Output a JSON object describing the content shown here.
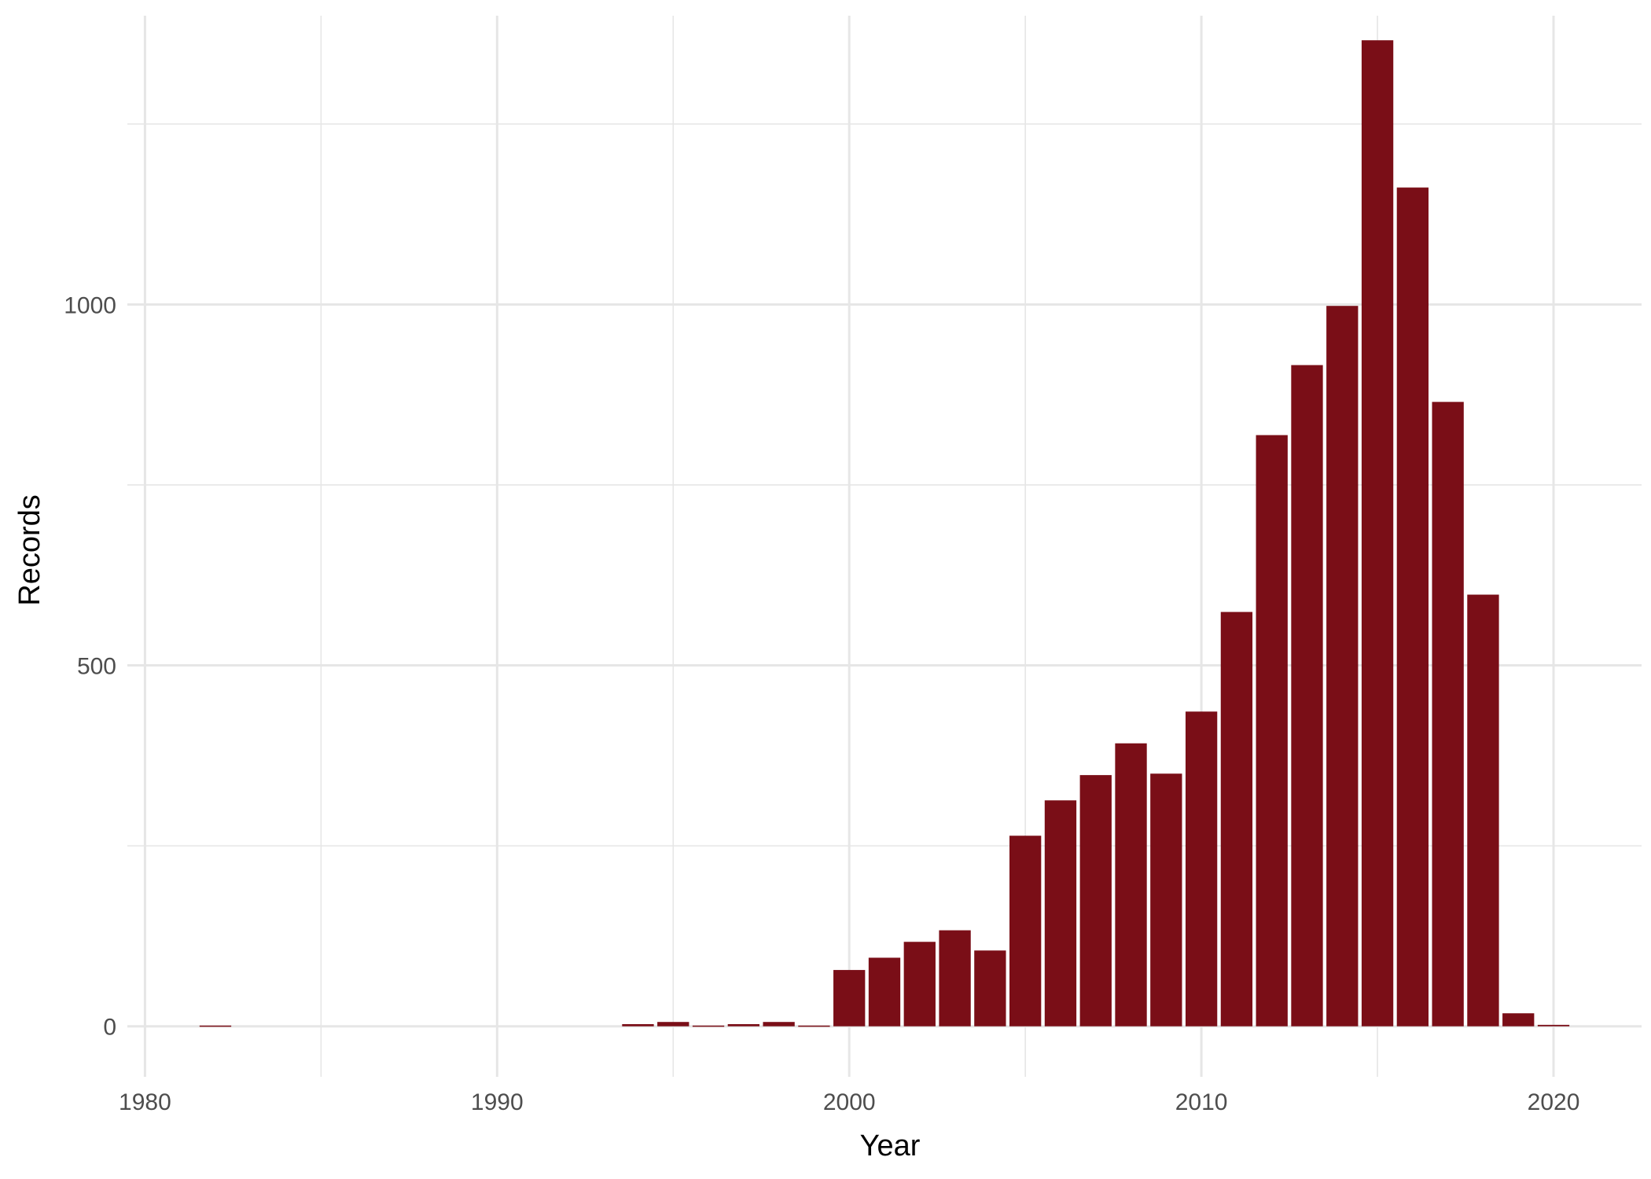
{
  "chart_data": {
    "type": "bar",
    "title": "",
    "xlabel": "Year",
    "ylabel": "Records",
    "x": [
      1982,
      1994,
      1995,
      1996,
      1997,
      1998,
      1999,
      2000,
      2001,
      2002,
      2003,
      2004,
      2005,
      2006,
      2007,
      2008,
      2009,
      2010,
      2011,
      2012,
      2013,
      2014,
      2015,
      2016,
      2017,
      2018,
      2019,
      2020
    ],
    "values": [
      1,
      3,
      6,
      1,
      3,
      6,
      1,
      78,
      95,
      117,
      133,
      105,
      264,
      313,
      348,
      392,
      350,
      436,
      574,
      819,
      916,
      998,
      1366,
      1162,
      865,
      598,
      18,
      2
    ],
    "xlim": [
      1979.5,
      2022.5
    ],
    "ylim": [
      -70,
      1400
    ],
    "x_ticks": [
      1980,
      1990,
      2000,
      2010,
      2020
    ],
    "x_tick_labels": [
      "1980",
      "1990",
      "2000",
      "2010",
      "2020"
    ],
    "y_ticks": [
      0,
      500,
      1000
    ],
    "y_tick_labels": [
      "0",
      "500",
      "1000"
    ],
    "grid": true,
    "bar_color": "#7a0e17",
    "grid_color": "#e6e6e6"
  }
}
